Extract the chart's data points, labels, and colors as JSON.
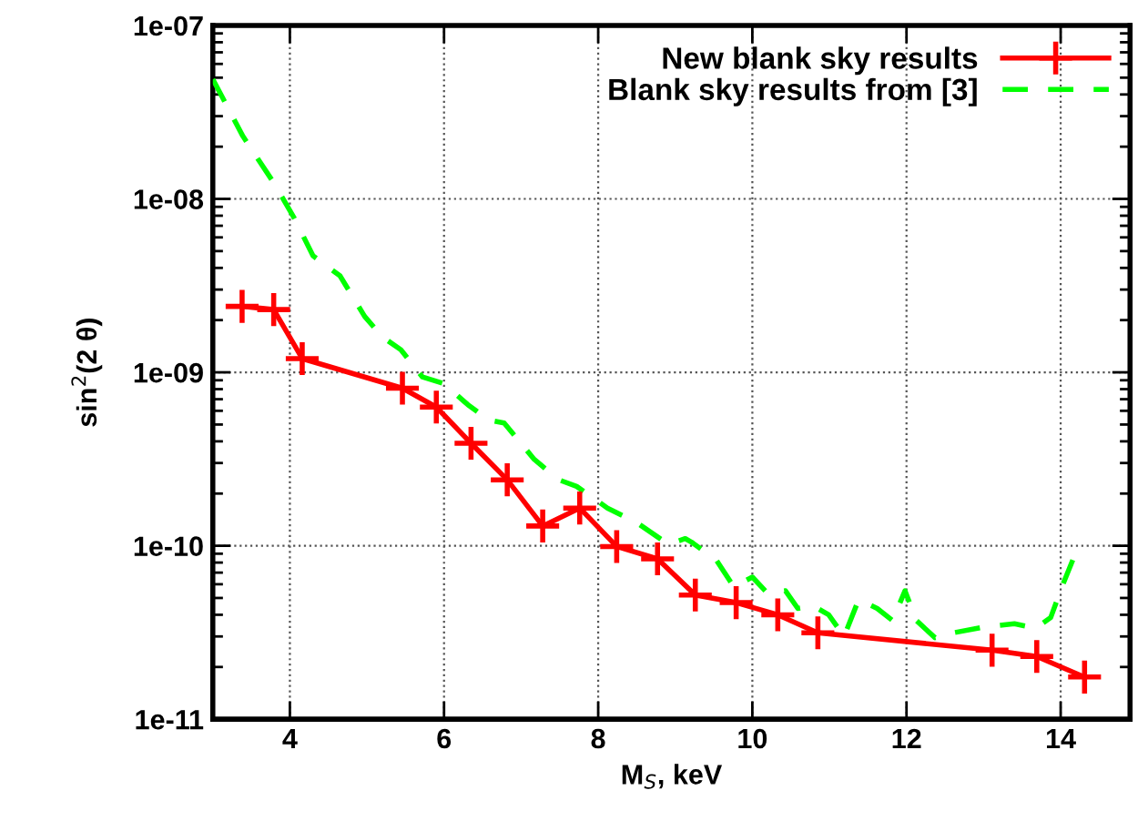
{
  "chart_data": {
    "type": "line",
    "xlabel": "M$_{S}$, keV",
    "ylabel": "sin$^{2}$(2 θ)",
    "log": "y",
    "grid": true,
    "legend": "top right",
    "xlim": [
      3,
      14.9
    ],
    "xticks": [
      4,
      6,
      8,
      10,
      12,
      14
    ],
    "ylim": [
      1e-11,
      1e-07
    ],
    "yticks": [
      {
        "value": 1e-11,
        "label": "1e-11"
      },
      {
        "value": 1e-10,
        "label": "1e-10"
      },
      {
        "value": 1e-09,
        "label": "1e-09"
      },
      {
        "value": 1e-08,
        "label": "1e-08"
      },
      {
        "value": 1e-07,
        "label": "1e-07"
      }
    ],
    "series": [
      {
        "name": "New blank sky results",
        "color": "#ff0000",
        "marker": "cross",
        "line_style": "solid",
        "x": [
          3.38,
          3.79,
          4.16,
          5.46,
          5.9,
          6.35,
          6.82,
          7.28,
          7.76,
          8.24,
          8.77,
          9.26,
          9.79,
          10.33,
          10.85,
          13.11,
          13.69,
          14.31
        ],
        "values": [
          2.4e-09,
          2.3e-09,
          1.2e-09,
          8.1e-10,
          6.3e-10,
          3.9e-10,
          2.4e-10,
          1.3e-10,
          1.65e-10,
          9.9e-11,
          8.4e-11,
          5.2e-11,
          4.7e-11,
          4e-11,
          3.15e-11,
          2.5e-11,
          2.3e-11,
          1.75e-11
        ]
      },
      {
        "name": "Blank sky results from [3]",
        "color": "#00ff00",
        "marker": "none",
        "line_style": "dashed",
        "x": [
          3.0,
          3.39,
          3.79,
          4.06,
          4.3,
          4.65,
          4.97,
          5.2,
          5.44,
          5.72,
          6.0,
          6.31,
          6.58,
          6.78,
          7.17,
          7.49,
          7.72,
          8.12,
          8.51,
          8.91,
          9.13,
          9.21,
          9.53,
          9.76,
          10.0,
          10.2,
          10.43,
          10.59,
          10.79,
          10.99,
          11.19,
          11.38,
          11.62,
          11.82,
          11.98,
          12.13,
          12.37,
          12.61,
          13.0,
          13.4,
          13.68,
          13.87,
          14.03,
          14.19
        ],
        "values": [
          4.9e-08,
          2.3e-08,
          1.24e-08,
          7.7e-09,
          4.7e-09,
          3.6e-09,
          2.1e-09,
          1.6e-09,
          1.35e-09,
          9.4e-10,
          8.6e-10,
          6.5e-10,
          5.3e-10,
          5.1e-10,
          3.15e-10,
          2.4e-10,
          2.2e-10,
          1.65e-10,
          1.35e-10,
          1.02e-10,
          1.1e-10,
          1.05e-10,
          8.3e-11,
          5.8e-11,
          6.6e-11,
          5.3e-11,
          5.5e-11,
          4.35e-11,
          4.5e-11,
          4e-11,
          3e-11,
          4.9e-11,
          4.35e-11,
          3.7e-11,
          5.5e-11,
          3.7e-11,
          2.95e-11,
          3.15e-11,
          3.4e-11,
          3.55e-11,
          3.35e-11,
          3.85e-11,
          6e-11,
          9e-11
        ]
      }
    ]
  }
}
